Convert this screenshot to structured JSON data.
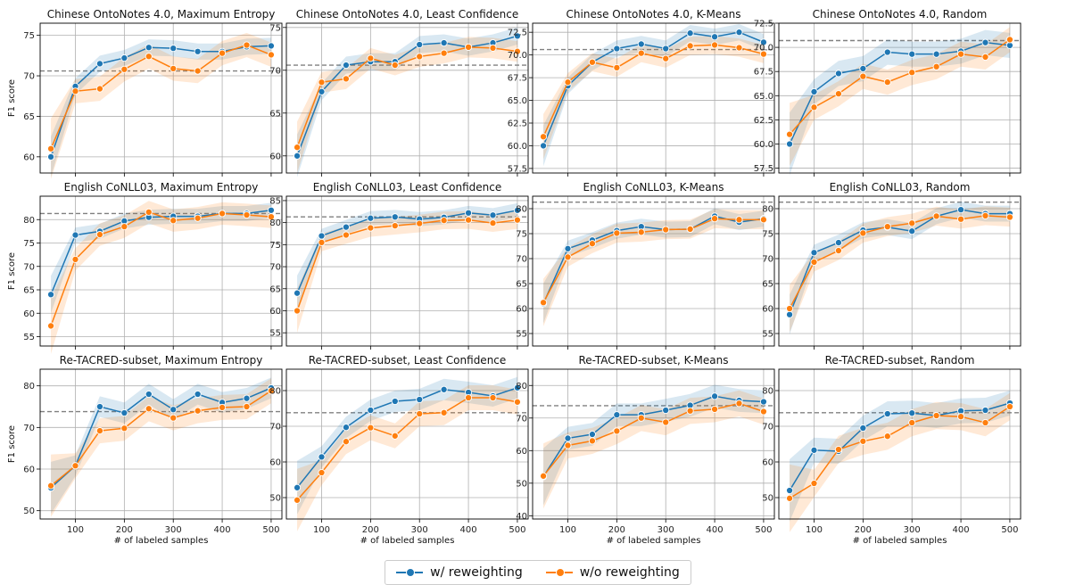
{
  "colors": {
    "with": "#1f77b4",
    "without": "#ff7f0e",
    "baseline": "#808080",
    "grid": "#b0b0b0"
  },
  "legend": {
    "with_label": "w/ reweighting",
    "without_label": "w/o reweighting"
  },
  "chart_data": [
    {
      "type": "line",
      "title": "Chinese OntoNotes 4.0, Maximum Entropy",
      "xlabel": "",
      "ylabel": "F1 score",
      "x": [
        50,
        100,
        150,
        200,
        250,
        300,
        350,
        400,
        450,
        500
      ],
      "xlim": [
        28,
        522
      ],
      "xticks": [
        100,
        200,
        300,
        400,
        500
      ],
      "ylim": [
        58,
        76.5
      ],
      "yticks": [
        60,
        65,
        70,
        75
      ],
      "ytick_labels": [
        "60",
        "65",
        "70",
        "75"
      ],
      "baseline": 70.6,
      "series": [
        {
          "name": "w/ reweighting",
          "values": [
            60.0,
            68.7,
            71.5,
            72.2,
            73.5,
            73.4,
            73.0,
            73.0,
            73.6,
            73.7
          ],
          "band": 1.0
        },
        {
          "name": "w/o reweighting",
          "values": [
            61.0,
            68.1,
            68.4,
            70.8,
            72.4,
            70.9,
            70.6,
            72.8,
            73.8,
            72.6
          ],
          "band": 1.5
        }
      ]
    },
    {
      "type": "line",
      "title": "Chinese OntoNotes 4.0, Least Confidence",
      "xlabel": "",
      "ylabel": "",
      "x": [
        50,
        100,
        150,
        200,
        250,
        300,
        350,
        400,
        450,
        500
      ],
      "xlim": [
        28,
        522
      ],
      "xticks": [
        100,
        200,
        300,
        400,
        500
      ],
      "ylim": [
        58,
        75.5
      ],
      "yticks": [
        60,
        65,
        70,
        75
      ],
      "ytick_labels": [
        "60",
        "65",
        "70",
        "75"
      ],
      "baseline": 70.6,
      "series": [
        {
          "name": "w/ reweighting",
          "values": [
            60.0,
            67.5,
            70.6,
            71.0,
            71.0,
            73.0,
            73.2,
            72.7,
            73.2,
            74.0
          ],
          "band": 1.0
        },
        {
          "name": "w/o reweighting",
          "values": [
            61.0,
            68.6,
            69.0,
            71.4,
            70.6,
            71.6,
            72.0,
            72.7,
            72.6,
            72.2
          ],
          "band": 1.2
        }
      ]
    },
    {
      "type": "line",
      "title": "Chinese OntoNotes 4.0, K-Means",
      "xlabel": "",
      "ylabel": "",
      "x": [
        50,
        100,
        150,
        200,
        250,
        300,
        350,
        400,
        450,
        500
      ],
      "xlim": [
        28,
        522
      ],
      "xticks": [
        100,
        200,
        300,
        400,
        500
      ],
      "ylim": [
        57,
        73.5
      ],
      "yticks": [
        57.5,
        60,
        62.5,
        65,
        67.5,
        70,
        72.5
      ],
      "ytick_labels": [
        "57.5",
        "60.0",
        "62.5",
        "65.0",
        "67.5",
        "70.0",
        "72.5"
      ],
      "baseline": 70.6,
      "series": [
        {
          "name": "w/ reweighting",
          "values": [
            60.0,
            66.6,
            69.2,
            70.7,
            71.2,
            70.7,
            72.4,
            72.0,
            72.5,
            71.4
          ],
          "band": 0.9
        },
        {
          "name": "w/o reweighting",
          "values": [
            61.0,
            67.0,
            69.2,
            68.6,
            70.2,
            69.6,
            71.0,
            71.1,
            70.8,
            70.1
          ],
          "band": 1.0
        }
      ]
    },
    {
      "type": "line",
      "title": "Chinese OntoNotes 4.0, Random",
      "xlabel": "",
      "ylabel": "",
      "x": [
        50,
        100,
        150,
        200,
        250,
        300,
        350,
        400,
        450,
        500
      ],
      "xlim": [
        28,
        522
      ],
      "xticks": [
        100,
        200,
        300,
        400,
        500
      ],
      "ylim": [
        57,
        72.5
      ],
      "yticks": [
        57.5,
        60,
        62.5,
        65,
        67.5,
        70,
        72.5
      ],
      "ytick_labels": [
        "57.5",
        "60.0",
        "62.5",
        "65.0",
        "67.5",
        "70.0",
        "72.5"
      ],
      "baseline": 70.7,
      "series": [
        {
          "name": "w/ reweighting",
          "values": [
            60.0,
            65.4,
            67.3,
            67.8,
            69.5,
            69.3,
            69.3,
            69.6,
            70.5,
            70.2
          ],
          "band": 1.3
        },
        {
          "name": "w/o reweighting",
          "values": [
            61.0,
            63.8,
            65.2,
            67.0,
            66.4,
            67.4,
            68.0,
            69.3,
            69.0,
            70.8
          ],
          "band": 1.3
        }
      ]
    },
    {
      "type": "line",
      "title": "English CoNLL03, Maximum Entropy",
      "xlabel": "",
      "ylabel": "F1 score",
      "x": [
        50,
        100,
        150,
        200,
        250,
        300,
        350,
        400,
        450,
        500
      ],
      "xlim": [
        28,
        522
      ],
      "xticks": [
        100,
        200,
        300,
        400,
        500
      ],
      "ylim": [
        53,
        85
      ],
      "yticks": [
        55,
        60,
        65,
        70,
        75,
        80
      ],
      "ytick_labels": [
        "55",
        "60",
        "65",
        "70",
        "75",
        "80"
      ],
      "baseline": 81.3,
      "series": [
        {
          "name": "w/ reweighting",
          "values": [
            64.0,
            76.7,
            77.5,
            79.7,
            80.5,
            80.7,
            80.7,
            81.3,
            81.3,
            82.0
          ],
          "band": 1.6
        },
        {
          "name": "w/o reweighting",
          "values": [
            57.3,
            71.5,
            76.8,
            78.5,
            81.6,
            79.8,
            80.3,
            81.3,
            81.0,
            80.6
          ],
          "band": 2.4
        }
      ]
    },
    {
      "type": "line",
      "title": "English CoNLL03, Least Confidence",
      "xlabel": "",
      "ylabel": "",
      "x": [
        50,
        100,
        150,
        200,
        250,
        300,
        350,
        400,
        450,
        500
      ],
      "xlim": [
        28,
        522
      ],
      "xticks": [
        100,
        200,
        300,
        400,
        500
      ],
      "ylim": [
        52,
        86
      ],
      "yticks": [
        55,
        60,
        65,
        70,
        75,
        80,
        85
      ],
      "ytick_labels": [
        "55",
        "60",
        "65",
        "70",
        "75",
        "80",
        "85"
      ],
      "baseline": 81.3,
      "series": [
        {
          "name": "w/ reweighting",
          "values": [
            64.0,
            77.0,
            79.0,
            81.0,
            81.3,
            80.8,
            81.2,
            82.2,
            81.7,
            82.8
          ],
          "band": 1.6
        },
        {
          "name": "w/o reweighting",
          "values": [
            60.0,
            75.5,
            77.2,
            78.8,
            79.3,
            79.8,
            80.5,
            80.6,
            79.9,
            80.6
          ],
          "band": 2.0
        }
      ]
    },
    {
      "type": "line",
      "title": "English CoNLL03, K-Means",
      "xlabel": "",
      "ylabel": "",
      "x": [
        50,
        100,
        150,
        200,
        250,
        300,
        350,
        400,
        450,
        500
      ],
      "xlim": [
        28,
        522
      ],
      "xticks": [
        100,
        200,
        300,
        400,
        500
      ],
      "ylim": [
        52.5,
        82.5
      ],
      "yticks": [
        55,
        60,
        65,
        70,
        75,
        80
      ],
      "ytick_labels": [
        "55",
        "60",
        "65",
        "70",
        "75",
        "80"
      ],
      "baseline": 81.3,
      "series": [
        {
          "name": "w/ reweighting",
          "values": [
            61.0,
            72.0,
            73.7,
            75.6,
            76.4,
            75.8,
            75.9,
            78.5,
            77.3,
            78.0
          ],
          "band": 1.6
        },
        {
          "name": "w/o reweighting",
          "values": [
            61.2,
            70.3,
            73.0,
            75.1,
            75.3,
            75.8,
            75.9,
            78.0,
            77.8,
            77.8
          ],
          "band": 1.9
        }
      ]
    },
    {
      "type": "line",
      "title": "English CoNLL03, Random",
      "xlabel": "",
      "ylabel": "",
      "x": [
        50,
        100,
        150,
        200,
        250,
        300,
        350,
        400,
        450,
        500
      ],
      "xlim": [
        28,
        522
      ],
      "xticks": [
        100,
        200,
        300,
        400,
        500
      ],
      "ylim": [
        52.5,
        82.5
      ],
      "yticks": [
        55,
        60,
        65,
        70,
        75,
        80
      ],
      "ytick_labels": [
        "55",
        "60",
        "65",
        "70",
        "75",
        "80"
      ],
      "baseline": 81.3,
      "series": [
        {
          "name": "w/ reweighting",
          "values": [
            58.8,
            71.2,
            73.2,
            75.7,
            76.3,
            75.5,
            78.5,
            79.8,
            79.0,
            79.0
          ],
          "band": 1.6
        },
        {
          "name": "w/o reweighting",
          "values": [
            60.0,
            69.3,
            71.6,
            75.1,
            76.4,
            77.1,
            78.5,
            77.9,
            78.6,
            78.3
          ],
          "band": 1.9
        }
      ]
    },
    {
      "type": "line",
      "title": "Re-TACRED-subset, Maximum Entropy",
      "xlabel": "# of labeled samples",
      "ylabel": "F1 score",
      "x": [
        50,
        100,
        150,
        200,
        250,
        300,
        350,
        400,
        450,
        500
      ],
      "xlim": [
        28,
        522
      ],
      "xticks": [
        100,
        200,
        300,
        400,
        500
      ],
      "ylim": [
        48,
        84
      ],
      "yticks": [
        50,
        60,
        70,
        80
      ],
      "ytick_labels": [
        "50",
        "60",
        "70",
        "80"
      ],
      "baseline": 73.8,
      "series": [
        {
          "name": "w/ reweighting",
          "values": [
            55.5,
            60.8,
            75.0,
            73.5,
            78.0,
            74.3,
            78.0,
            76.0,
            77.0,
            79.5
          ],
          "band": 2.5
        },
        {
          "name": "w/o reweighting",
          "values": [
            56.0,
            60.8,
            69.2,
            69.8,
            74.5,
            72.3,
            74.0,
            74.8,
            75.0,
            78.8
          ],
          "band": 3.0
        }
      ]
    },
    {
      "type": "line",
      "title": "Re-TACRED-subset, Least Confidence",
      "xlabel": "# of labeled samples",
      "ylabel": "",
      "x": [
        50,
        100,
        150,
        200,
        250,
        300,
        350,
        400,
        450,
        500
      ],
      "xlim": [
        28,
        522
      ],
      "xticks": [
        100,
        200,
        300,
        400,
        500
      ],
      "ylim": [
        44,
        86
      ],
      "yticks": [
        50,
        60,
        70,
        80
      ],
      "ytick_labels": [
        "50",
        "60",
        "70",
        "80"
      ],
      "baseline": 73.8,
      "series": [
        {
          "name": "w/ reweighting",
          "values": [
            52.8,
            61.4,
            69.7,
            74.5,
            77.0,
            77.5,
            80.3,
            79.5,
            78.5,
            80.8
          ],
          "band": 3.0
        },
        {
          "name": "w/o reweighting",
          "values": [
            49.3,
            57.0,
            65.7,
            69.6,
            67.3,
            73.5,
            73.8,
            78.0,
            78.0,
            76.8
          ],
          "band": 3.5
        }
      ]
    },
    {
      "type": "line",
      "title": "Re-TACRED-subset, K-Means",
      "xlabel": "# of labeled samples",
      "ylabel": "",
      "x": [
        50,
        100,
        150,
        200,
        250,
        300,
        350,
        400,
        450,
        500
      ],
      "xlim": [
        28,
        522
      ],
      "xticks": [
        100,
        200,
        300,
        400,
        500
      ],
      "ylim": [
        39,
        85
      ],
      "yticks": [
        40,
        50,
        60,
        70,
        80
      ],
      "ytick_labels": [
        "40",
        "50",
        "60",
        "70",
        "80"
      ],
      "baseline": 73.8,
      "series": [
        {
          "name": "w/ reweighting",
          "values": [
            52.0,
            63.8,
            65.0,
            71.0,
            71.0,
            72.4,
            73.9,
            76.7,
            75.4,
            75.0
          ],
          "band": 3.5
        },
        {
          "name": "w/o reweighting",
          "values": [
            52.2,
            61.6,
            63.0,
            66.0,
            70.0,
            68.7,
            72.2,
            72.7,
            74.5,
            72.0
          ],
          "band": 4.0
        }
      ]
    },
    {
      "type": "line",
      "title": "Re-TACRED-subset, Random",
      "xlabel": "# of labeled samples",
      "ylabel": "",
      "x": [
        50,
        100,
        150,
        200,
        250,
        300,
        350,
        400,
        450,
        500
      ],
      "xlim": [
        28,
        522
      ],
      "xticks": [
        100,
        200,
        300,
        400,
        500
      ],
      "ylim": [
        44,
        86
      ],
      "yticks": [
        50,
        60,
        70,
        80
      ],
      "ytick_labels": [
        "50",
        "60",
        "70",
        "80"
      ],
      "baseline": 73.8,
      "series": [
        {
          "name": "w/ reweighting",
          "values": [
            52.0,
            63.3,
            63.0,
            69.5,
            73.5,
            73.7,
            73.0,
            74.3,
            74.5,
            76.5
          ],
          "band": 3.5
        },
        {
          "name": "w/o reweighting",
          "values": [
            49.8,
            54.0,
            63.5,
            65.8,
            67.2,
            71.0,
            73.0,
            72.7,
            71.0,
            75.5
          ],
          "band": 3.8
        }
      ]
    }
  ]
}
